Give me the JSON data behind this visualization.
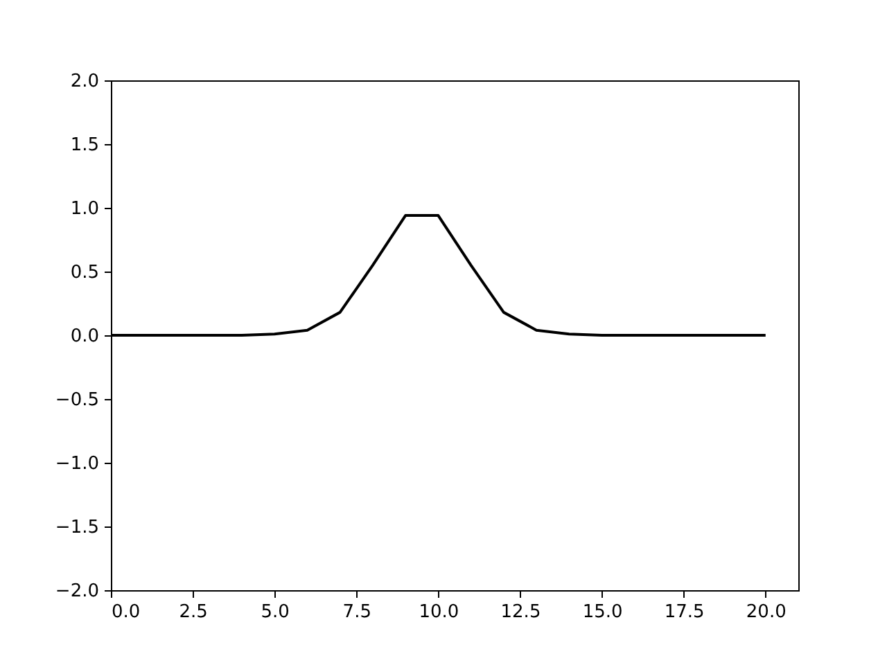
{
  "chart_data": {
    "type": "line",
    "color": "#000000",
    "marker": "none",
    "line_style": "solid",
    "grid": false,
    "x": [
      0,
      1,
      2,
      3,
      4,
      5,
      6,
      7,
      8,
      9,
      10,
      11,
      12,
      13,
      14,
      15,
      16,
      17,
      18,
      19,
      20
    ],
    "values": [
      0,
      0,
      0,
      0,
      0,
      0.01,
      0.04,
      0.18,
      0.55,
      0.94,
      0.94,
      0.55,
      0.18,
      0.04,
      0.01,
      0,
      0,
      0,
      0,
      0,
      0
    ],
    "xlim": [
      0,
      21
    ],
    "ylim": [
      -2,
      2
    ],
    "xticks": [
      {
        "value": 0,
        "label": "0.0"
      },
      2.5,
      {
        "value": 5,
        "label": "5.0"
      },
      7.5,
      {
        "value": 10,
        "label": "10.0"
      },
      12.5,
      {
        "value": 15,
        "label": "15.0"
      },
      17.5,
      {
        "value": 20,
        "label": "20.0"
      }
    ],
    "yticks": [
      {
        "value": -2,
        "label": "−2.0"
      },
      {
        "value": -1.5,
        "label": "−1.5"
      },
      {
        "value": -1,
        "label": "−1.0"
      },
      {
        "value": -0.5,
        "label": "−0.5"
      },
      {
        "value": 0,
        "label": "0.0"
      },
      0.5,
      {
        "value": 1,
        "label": "1.0"
      },
      1.5,
      {
        "value": 2,
        "label": "2.0"
      }
    ]
  }
}
